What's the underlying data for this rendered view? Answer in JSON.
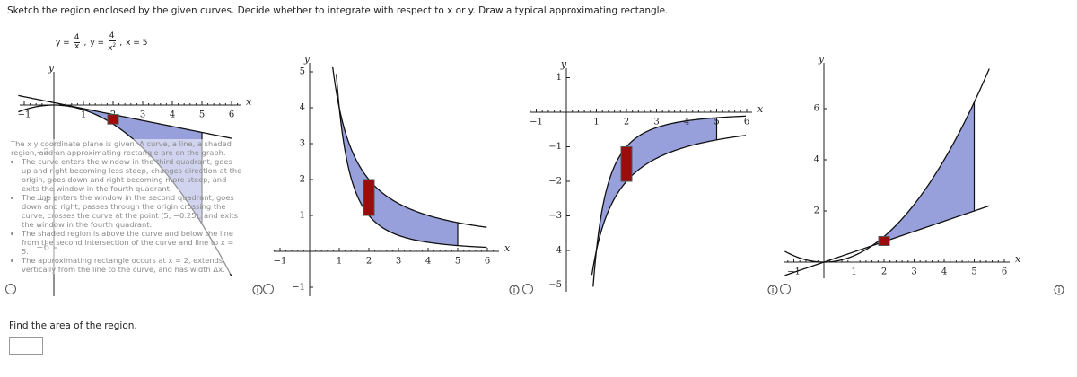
{
  "instruction": "Sketch the region enclosed by the given curves. Decide whether to integrate with respect to x or y. Draw a typical approximating rectangle.",
  "equations": [
    {
      "lhs": "y =",
      "num": "4",
      "den": "x",
      "sep": ","
    },
    {
      "lhs": "y =",
      "num": "4",
      "den": "x",
      "den_exp": "2",
      "sep": ","
    },
    {
      "text": "x = 5"
    }
  ],
  "options": [
    {
      "x_label": "x",
      "y_label": "y",
      "xticks": [
        "−1",
        "1",
        "2",
        "3",
        "4",
        "5",
        "6"
      ],
      "yticks": [
        "−2",
        "−4",
        "−6"
      ],
      "alt_text": {
        "intro": "The x y coordinate plane is given. A curve, a line, a shaded region, and an approximating rectangle are on the graph.",
        "bullets": [
          "The curve enters the window in the third quadrant, goes up and right becoming less steep, changes direction at the origin, goes down and right becoming more steep, and exits the window in the fourth quadrant.",
          "The line enters the window in the second quadrant, goes down and right, passes through the origin crossing the curve, crosses the curve at the point (5, −0.25), and exits the window in the fourth quadrant.",
          "The shaded region is above the curve and below the line from the second intersection of the curve and line to x = 5.",
          "The approximating rectangle occurs at x = 2, extends vertically from the line to the curve, and has width Δx."
        ]
      }
    },
    {
      "x_label": "x",
      "y_label": "y",
      "xticks": [
        "−1",
        "1",
        "2",
        "3",
        "4",
        "5",
        "6"
      ],
      "yticks": [
        "5",
        "4",
        "3",
        "2",
        "1",
        "−1"
      ]
    },
    {
      "x_label": "x",
      "y_label": "y",
      "xticks": [
        "−1",
        "1",
        "2",
        "3",
        "4",
        "5",
        "6"
      ],
      "yticks": [
        "1",
        "−1",
        "−2",
        "−3",
        "−4",
        "−5"
      ]
    },
    {
      "x_label": "x",
      "y_label": "y",
      "xticks": [
        "−1",
        "1",
        "2",
        "3",
        "4",
        "5",
        "6"
      ],
      "yticks": [
        "6",
        "4",
        "2"
      ]
    }
  ],
  "question": "Find the area of the region."
}
